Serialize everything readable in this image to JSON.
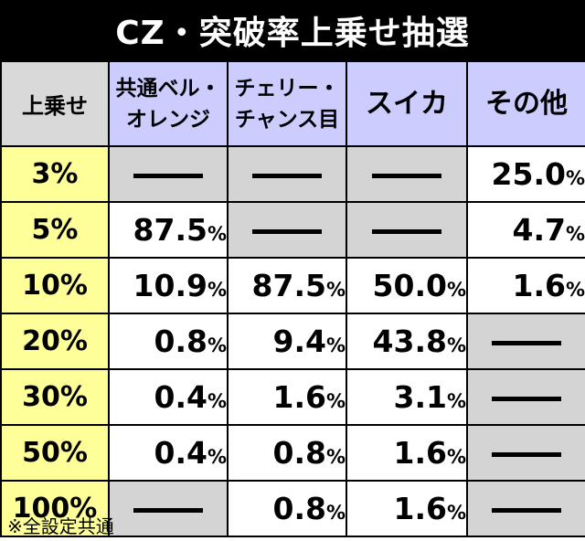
{
  "title": "CZ・突破率上乗せ抽選",
  "header": {
    "corner": "上乗せ",
    "columns": [
      {
        "line1": "共通ベル・",
        "line2": "オレンジ"
      },
      {
        "line1": "チェリー・",
        "line2": "チャンス目"
      },
      {
        "line1": "スイカ",
        "line2": ""
      },
      {
        "line1": "その他",
        "line2": ""
      }
    ]
  },
  "dash": "—",
  "rows": [
    {
      "label": "3%",
      "cells": [
        {
          "num": "",
          "pct": ""
        },
        {
          "num": "",
          "pct": ""
        },
        {
          "num": "",
          "pct": ""
        },
        {
          "num": "25.0",
          "pct": "%"
        }
      ]
    },
    {
      "label": "5%",
      "cells": [
        {
          "num": "87.5",
          "pct": "%"
        },
        {
          "num": "",
          "pct": ""
        },
        {
          "num": "",
          "pct": ""
        },
        {
          "num": "4.7",
          "pct": "%"
        }
      ]
    },
    {
      "label": "10%",
      "cells": [
        {
          "num": "10.9",
          "pct": "%"
        },
        {
          "num": "87.5",
          "pct": "%"
        },
        {
          "num": "50.0",
          "pct": "%"
        },
        {
          "num": "1.6",
          "pct": "%"
        }
      ]
    },
    {
      "label": "20%",
      "cells": [
        {
          "num": "0.8",
          "pct": "%"
        },
        {
          "num": "9.4",
          "pct": "%"
        },
        {
          "num": "43.8",
          "pct": "%"
        },
        {
          "num": "",
          "pct": ""
        }
      ]
    },
    {
      "label": "30%",
      "cells": [
        {
          "num": "0.4",
          "pct": "%"
        },
        {
          "num": "1.6",
          "pct": "%"
        },
        {
          "num": "3.1",
          "pct": "%"
        },
        {
          "num": "",
          "pct": ""
        }
      ]
    },
    {
      "label": "50%",
      "cells": [
        {
          "num": "0.4",
          "pct": "%"
        },
        {
          "num": "0.8",
          "pct": "%"
        },
        {
          "num": "1.6",
          "pct": "%"
        },
        {
          "num": "",
          "pct": ""
        }
      ]
    },
    {
      "label": "100%",
      "cells": [
        {
          "num": "",
          "pct": ""
        },
        {
          "num": "0.8",
          "pct": "%"
        },
        {
          "num": "1.6",
          "pct": "%"
        },
        {
          "num": "",
          "pct": ""
        }
      ]
    }
  ],
  "footnote": "※全設定共通"
}
